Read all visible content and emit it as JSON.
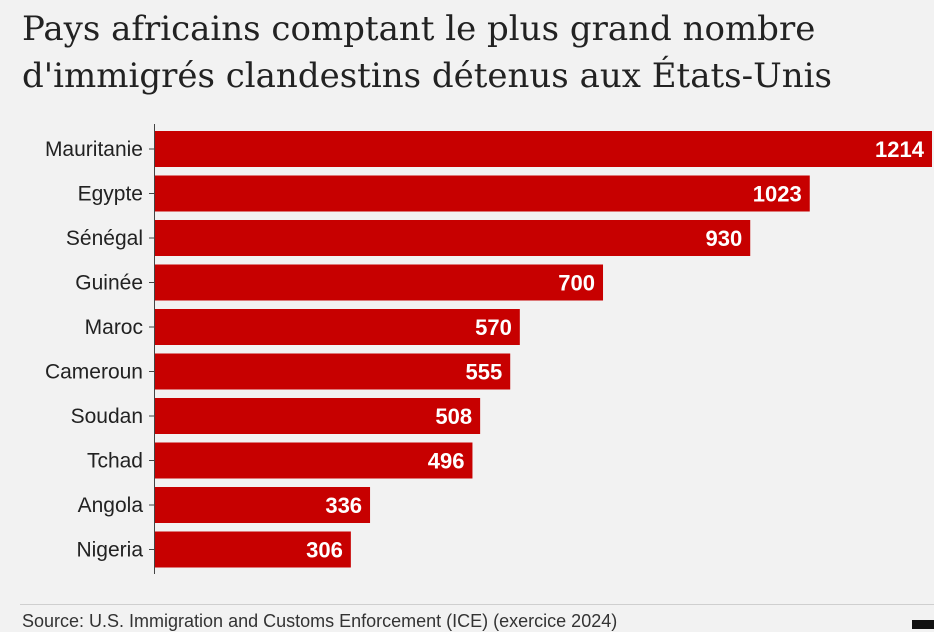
{
  "chart_data": {
    "type": "bar",
    "orientation": "horizontal",
    "title": "Pays africains comptant le plus grand nombre d'immigrés clandestins détenus aux États-Unis",
    "categories": [
      "Mauritanie",
      "Egypte",
      "Sénégal",
      "Guinée",
      "Maroc",
      "Cameroun",
      "Soudan",
      "Tchad",
      "Angola",
      "Nigeria"
    ],
    "values": [
      1214,
      1023,
      930,
      700,
      570,
      555,
      508,
      496,
      336,
      306
    ],
    "xlim": [
      0,
      1214
    ],
    "bar_color": "#c70000",
    "value_label_color": "#ffffff",
    "grid": false,
    "source": "Source: U.S. Immigration and Customs Enforcement (ICE) (exercice 2024)"
  }
}
